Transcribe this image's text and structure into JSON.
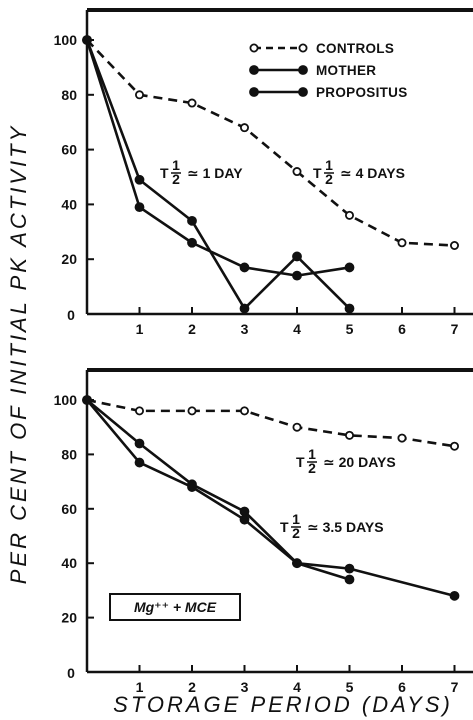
{
  "chart_data": [
    {
      "type": "line",
      "x": [
        0,
        1,
        2,
        3,
        4,
        5,
        6,
        7
      ],
      "xlim": [
        0,
        7
      ],
      "ylim": [
        0,
        100
      ],
      "x_ticks": [
        "1",
        "2",
        "3",
        "4",
        "5",
        "6",
        "7"
      ],
      "y_ticks": [
        "20",
        "40",
        "60",
        "80",
        "100"
      ],
      "origin_label": "0",
      "legend_position": "top-right",
      "series": [
        {
          "name": "CONTROLS",
          "style": "dashed-open-circle",
          "points": [
            [
              0,
              100
            ],
            [
              1,
              80
            ],
            [
              2,
              77
            ],
            [
              3,
              68
            ],
            [
              4,
              52
            ],
            [
              5,
              36
            ],
            [
              6,
              26
            ],
            [
              7,
              25
            ]
          ]
        },
        {
          "name": "MOTHER",
          "style": "solid-filled-circle",
          "points": [
            [
              0,
              100
            ],
            [
              1,
              49
            ],
            [
              2,
              34
            ],
            [
              3,
              2
            ],
            [
              4,
              21
            ],
            [
              5,
              2
            ]
          ]
        },
        {
          "name": "PROPOSITUS",
          "style": "solid-filled-circle",
          "points": [
            [
              0,
              100
            ],
            [
              1,
              39
            ],
            [
              2,
              26
            ],
            [
              3,
              17
            ],
            [
              4,
              14
            ],
            [
              5,
              17
            ]
          ]
        }
      ],
      "annotations": [
        {
          "text_before": "T",
          "fraction": "1/2",
          "text_after": "≃ 1 DAY"
        },
        {
          "text_before": "T",
          "fraction": "1/2",
          "text_after": "≃ 4 DAYS"
        }
      ]
    },
    {
      "type": "line",
      "x": [
        0,
        1,
        2,
        3,
        4,
        5,
        6,
        7
      ],
      "xlim": [
        0,
        7
      ],
      "ylim": [
        0,
        100
      ],
      "x_ticks": [
        "1",
        "2",
        "3",
        "4",
        "5",
        "6",
        "7"
      ],
      "y_ticks": [
        "20",
        "40",
        "60",
        "80",
        "100"
      ],
      "origin_label": "0",
      "inset_label": "Mg⁺⁺ + MCE",
      "series": [
        {
          "name": "CONTROLS",
          "style": "dashed-open-circle",
          "points": [
            [
              0,
              100
            ],
            [
              1,
              96
            ],
            [
              2,
              96
            ],
            [
              3,
              96
            ],
            [
              4,
              90
            ],
            [
              5,
              87
            ],
            [
              6,
              86
            ],
            [
              7,
              83
            ]
          ]
        },
        {
          "name": "MOTHER",
          "style": "solid-filled-circle",
          "points": [
            [
              0,
              100
            ],
            [
              1,
              84
            ],
            [
              2,
              69
            ],
            [
              3,
              59
            ],
            [
              4,
              40
            ],
            [
              5,
              34
            ]
          ]
        },
        {
          "name": "PROPOSITUS",
          "style": "solid-filled-circle",
          "points": [
            [
              0,
              100
            ],
            [
              1,
              77
            ],
            [
              2,
              68
            ],
            [
              3,
              56
            ],
            [
              4,
              40
            ],
            [
              5,
              38
            ],
            [
              7,
              28
            ]
          ]
        }
      ],
      "annotations": [
        {
          "text_before": "T",
          "fraction": "1/2",
          "text_after": "≃ 20 DAYS"
        },
        {
          "text_before": "T",
          "fraction": "1/2",
          "text_after": "≃ 3.5 DAYS"
        }
      ]
    }
  ],
  "ylabel": "PER CENT OF INITIAL PK ACTIVITY",
  "xlabel": "STORAGE PERIOD (DAYS)"
}
